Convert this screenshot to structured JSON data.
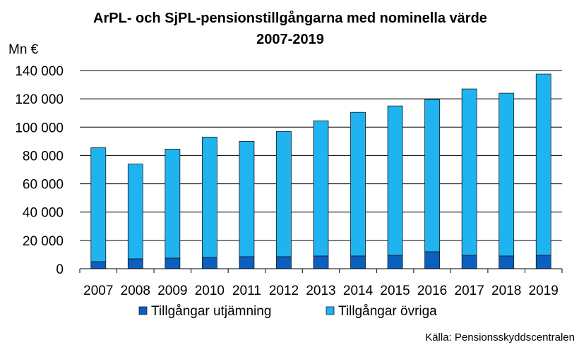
{
  "chart_data": {
    "type": "bar",
    "stacked": true,
    "title_line1": "ArPL- och SjPL-pensionstillgångarna med nominella värde",
    "title_line2": "2007-2019",
    "ylabel": "Mn €",
    "ylim": [
      0,
      140000
    ],
    "yticks": [
      {
        "value": 0,
        "label": "0"
      },
      {
        "value": 20000,
        "label": "20 000"
      },
      {
        "value": 40000,
        "label": "40 000"
      },
      {
        "value": 60000,
        "label": "60 000"
      },
      {
        "value": 80000,
        "label": "80 000"
      },
      {
        "value": 100000,
        "label": "100 000"
      },
      {
        "value": 120000,
        "label": "120 000"
      },
      {
        "value": 140000,
        "label": "140 000"
      }
    ],
    "grid": true,
    "categories": [
      "2007",
      "2008",
      "2009",
      "2010",
      "2011",
      "2012",
      "2013",
      "2014",
      "2015",
      "2016",
      "2017",
      "2018",
      "2019"
    ],
    "series": [
      {
        "name": "Tillgångar utjämning",
        "color": "#0a5fbf",
        "values": [
          5000,
          7000,
          7500,
          8000,
          8500,
          8500,
          9000,
          9000,
          9500,
          12000,
          9500,
          9000,
          9500
        ]
      },
      {
        "name": "Tillgångar övriga",
        "color": "#1fb4f0",
        "values": [
          80500,
          67000,
          77000,
          85000,
          81500,
          88500,
          95500,
          101500,
          105500,
          107500,
          117500,
          115000,
          128000
        ]
      }
    ],
    "legend_position": "bottom",
    "source": "Källa: Pensionsskyddscentralen"
  }
}
